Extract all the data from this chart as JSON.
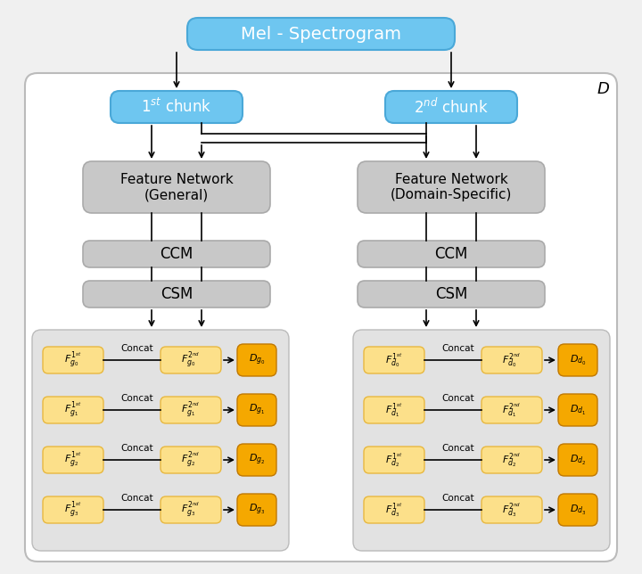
{
  "bg_color": "#f0f0f0",
  "outer_box_color": "#ffffff",
  "outer_box_edge": "#bbbbbb",
  "mel_box_color": "#6ec6f0",
  "mel_box_text": "Mel - Spectrogram",
  "chunk1_text": "1$^{st}$ chunk",
  "chunk2_text": "2$^{nd}$ chunk",
  "chunk_color": "#6ec6f0",
  "chunk_edge": "#4aa8d8",
  "fn_general_text": "Feature Network\n(General)",
  "fn_domain_text": "Feature Network\n(Domain-Specific)",
  "fn_color": "#c8c8c8",
  "fn_edge": "#aaaaaa",
  "ccm_text": "CCM",
  "csm_text": "CSM",
  "ccm_csm_color": "#c8c8c8",
  "ccm_csm_edge": "#aaaaaa",
  "inner_box_color": "#e2e2e2",
  "inner_box_edge": "#bbbbbb",
  "f_light_color": "#fce08a",
  "f_light_edge": "#e8b840",
  "d_color": "#f5a800",
  "d_edge": "#c07800",
  "D_label": "D",
  "g_rows": [
    {
      "f1": "$F_{g_0}^{1^{st}}$",
      "f2": "$F_{g_0}^{2^{nd}}$",
      "d": "$D_{g_0}$"
    },
    {
      "f1": "$F_{g_1}^{1^{st}}$",
      "f2": "$F_{g_1}^{2^{nd}}$",
      "d": "$D_{g_1}$"
    },
    {
      "f1": "$F_{g_2}^{1^{st}}$",
      "f2": "$F_{g_2}^{2^{nd}}$",
      "d": "$D_{g_2}$"
    },
    {
      "f1": "$F_{g_3}^{1^{st}}$",
      "f2": "$F_{g_3}^{2^{nd}}$",
      "d": "$D_{g_3}$"
    }
  ],
  "d_rows": [
    {
      "f1": "$F_{d_0}^{1^{st}}$",
      "f2": "$F_{d_0}^{2^{nd}}$",
      "d": "$D_{d_0}$"
    },
    {
      "f1": "$F_{d_1}^{1^{st}}$",
      "f2": "$F_{d_1}^{2^{nd}}$",
      "d": "$D_{d_1}$"
    },
    {
      "f1": "$F_{d_2}^{1^{st}}$",
      "f2": "$F_{d_2}^{2^{nd}}$",
      "d": "$D_{d_2}$"
    },
    {
      "f1": "$F_{d_3}^{1^{st}}$",
      "f2": "$F_{d_3}^{2^{nd}}$",
      "d": "$D_{d_3}$"
    }
  ]
}
